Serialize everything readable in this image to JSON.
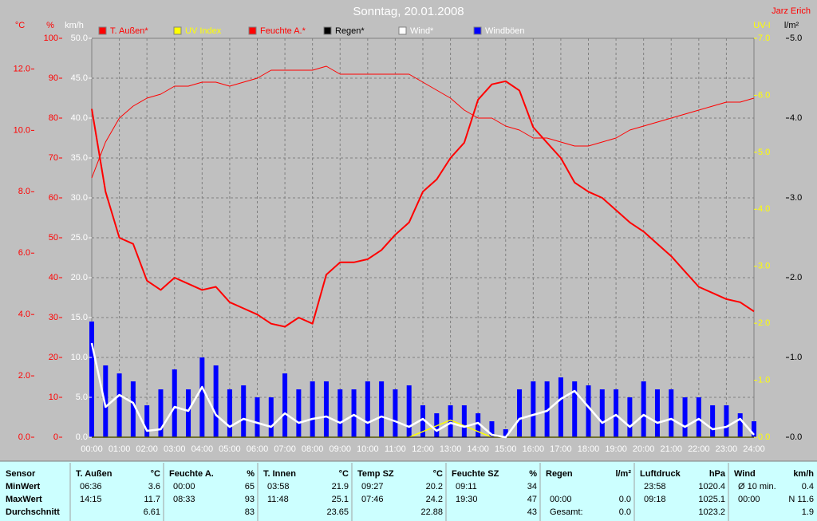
{
  "chart_data": {
    "type": "line",
    "title": "Sonntag, 20.01.2008",
    "author": "Jarz Erich",
    "grid": true,
    "x": [
      0,
      0.5,
      1,
      1.5,
      2,
      2.5,
      3,
      3.5,
      4,
      4.5,
      5,
      5.5,
      6,
      6.5,
      7,
      7.5,
      8,
      8.5,
      9,
      9.5,
      10,
      10.5,
      11,
      11.5,
      12,
      12.5,
      13,
      13.5,
      14,
      14.5,
      15,
      15.5,
      16,
      16.5,
      17,
      17.5,
      18,
      18.5,
      19,
      19.5,
      20,
      20.5,
      21,
      21.5,
      22,
      22.5,
      23,
      23.5,
      24
    ],
    "xlim": [
      0,
      24
    ],
    "xticks": [
      {
        "value": 0,
        "label": "00:00"
      },
      {
        "value": 1,
        "label": "01:00"
      },
      {
        "value": 2,
        "label": "02:00"
      },
      {
        "value": 3,
        "label": "03:00"
      },
      {
        "value": 4,
        "label": "04:00"
      },
      {
        "value": 5,
        "label": "05:00"
      },
      {
        "value": 6,
        "label": "06:00"
      },
      {
        "value": 7,
        "label": "07:00"
      },
      {
        "value": 8,
        "label": "08:00"
      },
      {
        "value": 9,
        "label": "09:00"
      },
      {
        "value": 10,
        "label": "10:00"
      },
      {
        "value": 11,
        "label": "11:00"
      },
      {
        "value": 12,
        "label": "12:00"
      },
      {
        "value": 13,
        "label": "13:00"
      },
      {
        "value": 14,
        "label": "14:00"
      },
      {
        "value": 15,
        "label": "15:00"
      },
      {
        "value": 16,
        "label": "16:00"
      },
      {
        "value": 17,
        "label": "17:00"
      },
      {
        "value": 18,
        "label": "18:00"
      },
      {
        "value": 19,
        "label": "19:00"
      },
      {
        "value": 20,
        "label": "20:00"
      },
      {
        "value": 21,
        "label": "21:00"
      },
      {
        "value": 22,
        "label": "22:00"
      },
      {
        "value": 23,
        "label": "23:00"
      },
      {
        "value": 24,
        "label": "24:00"
      }
    ],
    "y_axes": [
      {
        "label": "°C",
        "color": "#ff0000",
        "side": "left",
        "lim": [
          0,
          13
        ],
        "ticks": [
          {
            "value": 0,
            "label": "0.0"
          },
          {
            "value": 2,
            "label": "2.0"
          },
          {
            "value": 4,
            "label": "4.0"
          },
          {
            "value": 6,
            "label": "6.0"
          },
          {
            "value": 8,
            "label": "8.0"
          },
          {
            "value": 10,
            "label": "10.0"
          },
          {
            "value": 12,
            "label": "12.0"
          }
        ]
      },
      {
        "label": "%",
        "color": "#ff0000",
        "side": "left",
        "lim": [
          0,
          100
        ],
        "ticks": [
          0,
          10,
          20,
          30,
          40,
          50,
          60,
          70,
          80,
          90,
          100
        ]
      },
      {
        "label": "km/h",
        "color": "#ffffff",
        "side": "left",
        "lim": [
          0,
          50
        ],
        "grid": true,
        "ticks": [
          {
            "value": 0,
            "label": "0.0"
          },
          {
            "value": 5,
            "label": "5.0"
          },
          {
            "value": 10,
            "label": "10.0"
          },
          {
            "value": 15,
            "label": "15.0"
          },
          {
            "value": 20,
            "label": "20.0"
          },
          {
            "value": 25,
            "label": "25.0"
          },
          {
            "value": 30,
            "label": "30.0"
          },
          {
            "value": 35,
            "label": "35.0"
          },
          {
            "value": 40,
            "label": "40.0"
          },
          {
            "value": 45,
            "label": "45.0"
          },
          {
            "value": 50,
            "label": "50.0"
          }
        ]
      },
      {
        "label": "UV-I",
        "color": "#ffff00",
        "side": "right",
        "lim": [
          0,
          7
        ],
        "ticks": [
          {
            "value": 0,
            "label": "0.0"
          },
          {
            "value": 1,
            "label": "1.0"
          },
          {
            "value": 2,
            "label": "2.0"
          },
          {
            "value": 3,
            "label": "3.0"
          },
          {
            "value": 4,
            "label": "4.0"
          },
          {
            "value": 5,
            "label": "5.0"
          },
          {
            "value": 6,
            "label": "6.0"
          },
          {
            "value": 7,
            "label": "7.0"
          }
        ]
      },
      {
        "label": "l/m²",
        "color": "#000000",
        "side": "right",
        "lim": [
          0,
          5
        ],
        "ticks": [
          {
            "value": 0,
            "label": "0.0"
          },
          {
            "value": 1,
            "label": "1.0"
          },
          {
            "value": 2,
            "label": "2.0"
          },
          {
            "value": 3,
            "label": "3.0"
          },
          {
            "value": 4,
            "label": "4.0"
          },
          {
            "value": 5,
            "label": "5.0"
          }
        ]
      }
    ],
    "series": [
      {
        "name": "T. Außen*",
        "color": "#ff0000",
        "label_color": "#ff0000",
        "type": "line",
        "axis": 0,
        "width": 2,
        "values": [
          10.7,
          8.0,
          6.5,
          6.3,
          5.1,
          4.8,
          5.2,
          5.0,
          4.8,
          4.9,
          4.4,
          4.2,
          4.0,
          3.7,
          3.6,
          3.9,
          3.7,
          5.3,
          5.7,
          5.7,
          5.8,
          6.1,
          6.6,
          7.0,
          8.0,
          8.4,
          9.1,
          9.6,
          11.0,
          11.5,
          11.6,
          11.3,
          10.1,
          9.6,
          9.1,
          8.3,
          8.0,
          7.8,
          7.4,
          7.0,
          6.7,
          6.3,
          5.9,
          5.4,
          4.9,
          4.7,
          4.5,
          4.4,
          4.1
        ]
      },
      {
        "name": "UV Index",
        "color": "#ffff00",
        "label_color": "#ffff00",
        "type": "line",
        "axis": 3,
        "width": 1.5,
        "values": [
          0,
          0,
          0,
          0,
          0,
          0,
          0,
          0,
          0,
          0,
          0,
          0,
          0,
          0,
          0,
          0,
          0,
          0,
          0,
          0,
          0,
          0,
          0,
          0,
          0.1,
          0.2,
          0.3,
          0.2,
          0.1,
          0,
          0,
          0,
          0,
          0,
          0,
          0,
          0,
          0,
          0,
          0,
          0,
          0,
          0,
          0,
          0,
          0,
          0,
          0,
          0
        ]
      },
      {
        "name": "Feuchte A.*",
        "color": "#ff0000",
        "label_color": "#ff0000",
        "type": "line",
        "axis": 1,
        "width": 1,
        "values": [
          65,
          74,
          80,
          83,
          85,
          86,
          88,
          88,
          89,
          89,
          88,
          89,
          90,
          92,
          92,
          92,
          92,
          93,
          91,
          91,
          91,
          91,
          91,
          91,
          89,
          87,
          85,
          82,
          80,
          80,
          78,
          77,
          75,
          75,
          74,
          73,
          73,
          74,
          75,
          77,
          78,
          79,
          80,
          81,
          82,
          83,
          84,
          84,
          85
        ]
      },
      {
        "name": "Regen*",
        "color": "#000000",
        "label_color": "#000000",
        "type": "line",
        "axis": 4,
        "width": 1,
        "values": [
          0,
          0,
          0,
          0,
          0,
          0,
          0,
          0,
          0,
          0,
          0,
          0,
          0,
          0,
          0,
          0,
          0,
          0,
          0,
          0,
          0,
          0,
          0,
          0,
          0,
          0,
          0,
          0,
          0,
          0,
          0,
          0,
          0,
          0,
          0,
          0,
          0,
          0,
          0,
          0,
          0,
          0,
          0,
          0,
          0,
          0,
          0,
          0,
          0
        ]
      },
      {
        "name": "Wind*",
        "color": "#ffffff",
        "label_color": "#ffffff",
        "type": "line",
        "axis": 2,
        "width": 2.5,
        "values": [
          11.8,
          3.8,
          5.3,
          4.3,
          0.8,
          1.0,
          3.8,
          3.3,
          6.3,
          2.8,
          1.3,
          2.3,
          1.8,
          1.3,
          3.0,
          1.8,
          2.3,
          2.6,
          1.8,
          2.8,
          1.8,
          2.6,
          2.0,
          1.3,
          2.3,
          0.8,
          1.8,
          1.3,
          1.8,
          0.3,
          0,
          2.3,
          2.8,
          3.3,
          4.8,
          5.8,
          3.8,
          1.8,
          2.8,
          1.3,
          2.8,
          1.8,
          2.3,
          1.3,
          2.3,
          1.0,
          1.3,
          2.3,
          0.3
        ]
      },
      {
        "name": "Windböen",
        "color": "#0000ff",
        "label_color": "#ffffff",
        "type": "bar",
        "axis": 2,
        "values": [
          14.5,
          9,
          8,
          7,
          4,
          6,
          8.5,
          6,
          10,
          9,
          6,
          6.5,
          5,
          5,
          8,
          6,
          7,
          7,
          6,
          6,
          7,
          7,
          6,
          6.5,
          4,
          3,
          4,
          4,
          3,
          2,
          1,
          6,
          7,
          7,
          7.5,
          7,
          6.5,
          6,
          6,
          5,
          7,
          6,
          6,
          5,
          5,
          4,
          4,
          3,
          2
        ]
      }
    ]
  },
  "stats_table": {
    "columns": [
      {
        "header": "Sensor"
      },
      {
        "header": "T. Außen",
        "unit": "°C"
      },
      {
        "header": "Feuchte A.",
        "unit": "%"
      },
      {
        "header": "T. Innen",
        "unit": "°C"
      },
      {
        "header": "Temp SZ",
        "unit": "°C"
      },
      {
        "header": "Feuchte SZ",
        "unit": "%"
      },
      {
        "header": "Regen",
        "unit": "l/m²"
      },
      {
        "header": "Luftdruck",
        "unit": "hPa"
      },
      {
        "header": "Wind",
        "unit": "km/h"
      }
    ],
    "rows": [
      {
        "label": "MinWert",
        "cells": [
          [
            "06:36",
            "3.6"
          ],
          [
            "00:00",
            "65"
          ],
          [
            "03:58",
            "21.9"
          ],
          [
            "09:27",
            "20.2"
          ],
          [
            "09:11",
            "34"
          ],
          [
            null,
            null
          ],
          [
            "23:58",
            "1020.4"
          ],
          [
            "Ø 10 min.",
            "0.4"
          ]
        ]
      },
      {
        "label": "MaxWert",
        "cells": [
          [
            "14:15",
            "11.7"
          ],
          [
            "08:33",
            "93"
          ],
          [
            "11:48",
            "25.1"
          ],
          [
            "07:46",
            "24.2"
          ],
          [
            "19:30",
            "47"
          ],
          [
            "00:00",
            "0.0"
          ],
          [
            "09:18",
            "1025.1"
          ],
          [
            "00:00",
            "N 11.6"
          ]
        ]
      },
      {
        "label": "Durchschnitt",
        "cells": [
          [
            null,
            "6.61"
          ],
          [
            null,
            "83"
          ],
          [
            null,
            "23.65"
          ],
          [
            null,
            "22.88"
          ],
          [
            null,
            "43"
          ],
          [
            "Gesamt:",
            "0.0"
          ],
          [
            null,
            "1023.2"
          ],
          [
            null,
            "1.9"
          ]
        ]
      }
    ]
  }
}
